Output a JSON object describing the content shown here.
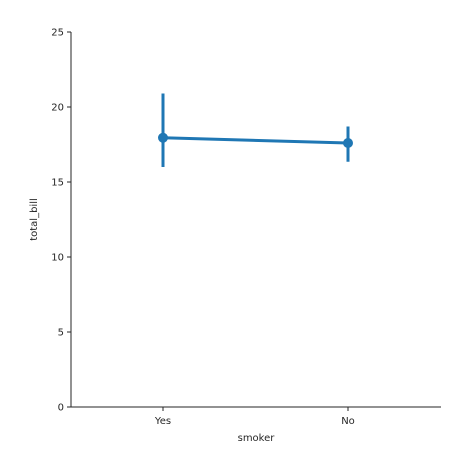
{
  "chart_data": {
    "type": "line",
    "title": "",
    "xlabel": "smoker",
    "ylabel": "total_bill",
    "categories": [
      "Yes",
      "No"
    ],
    "ylim": [
      0,
      25
    ],
    "yticks": [
      0,
      5,
      10,
      15,
      20,
      25
    ],
    "grid": false,
    "color": "#1f77b4",
    "series": [
      {
        "values": [
          17.95,
          17.6
        ],
        "ci_low": [
          16.0,
          16.35
        ],
        "ci_high": [
          20.9,
          18.7
        ]
      }
    ]
  }
}
